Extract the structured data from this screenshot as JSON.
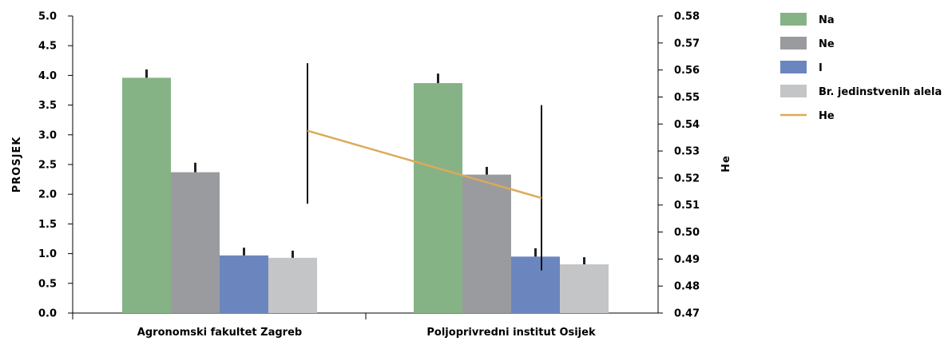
{
  "chart_data": {
    "type": "bar",
    "categories": [
      "Agronomski fakultet Zagreb",
      "Poljoprivredni institut Osijek"
    ],
    "series": [
      {
        "name": "Na",
        "color": "#86b386",
        "values": [
          3.96,
          3.87
        ],
        "err_top": [
          4.1,
          4.03
        ]
      },
      {
        "name": "Ne",
        "color": "#9a9b9e",
        "values": [
          2.37,
          2.33
        ],
        "err_top": [
          2.53,
          2.46
        ]
      },
      {
        "name": "I",
        "color": "#6b86bf",
        "values": [
          0.97,
          0.95
        ],
        "err_top": [
          1.1,
          1.09
        ]
      },
      {
        "name": "Br. jedinstvenih alela",
        "color": "#c4c5c7",
        "values": [
          0.93,
          0.82
        ],
        "err_top": [
          1.05,
          0.94
        ]
      }
    ],
    "line_series": {
      "name": "He",
      "color": "#dcaa57",
      "axis": "right",
      "values": [
        0.5375,
        0.5126
      ],
      "err_low": [
        0.5105,
        0.4858
      ],
      "err_high": [
        0.5625,
        0.547
      ]
    },
    "ylabel": "PROSJEK",
    "y2label": "He",
    "ylim": [
      0,
      5
    ],
    "y2lim": [
      0.47,
      0.58
    ],
    "yticks": [
      "0.0",
      "0.5",
      "1.0",
      "1.5",
      "2.0",
      "2.5",
      "3.0",
      "3.5",
      "4.0",
      "4.5",
      "5.0"
    ],
    "y2ticks": [
      "0.47",
      "0.48",
      "0.49",
      "0.50",
      "0.51",
      "0.52",
      "0.53",
      "0.54",
      "0.55",
      "0.56",
      "0.57",
      "0.58"
    ],
    "legend_position": "right",
    "grid": false
  }
}
